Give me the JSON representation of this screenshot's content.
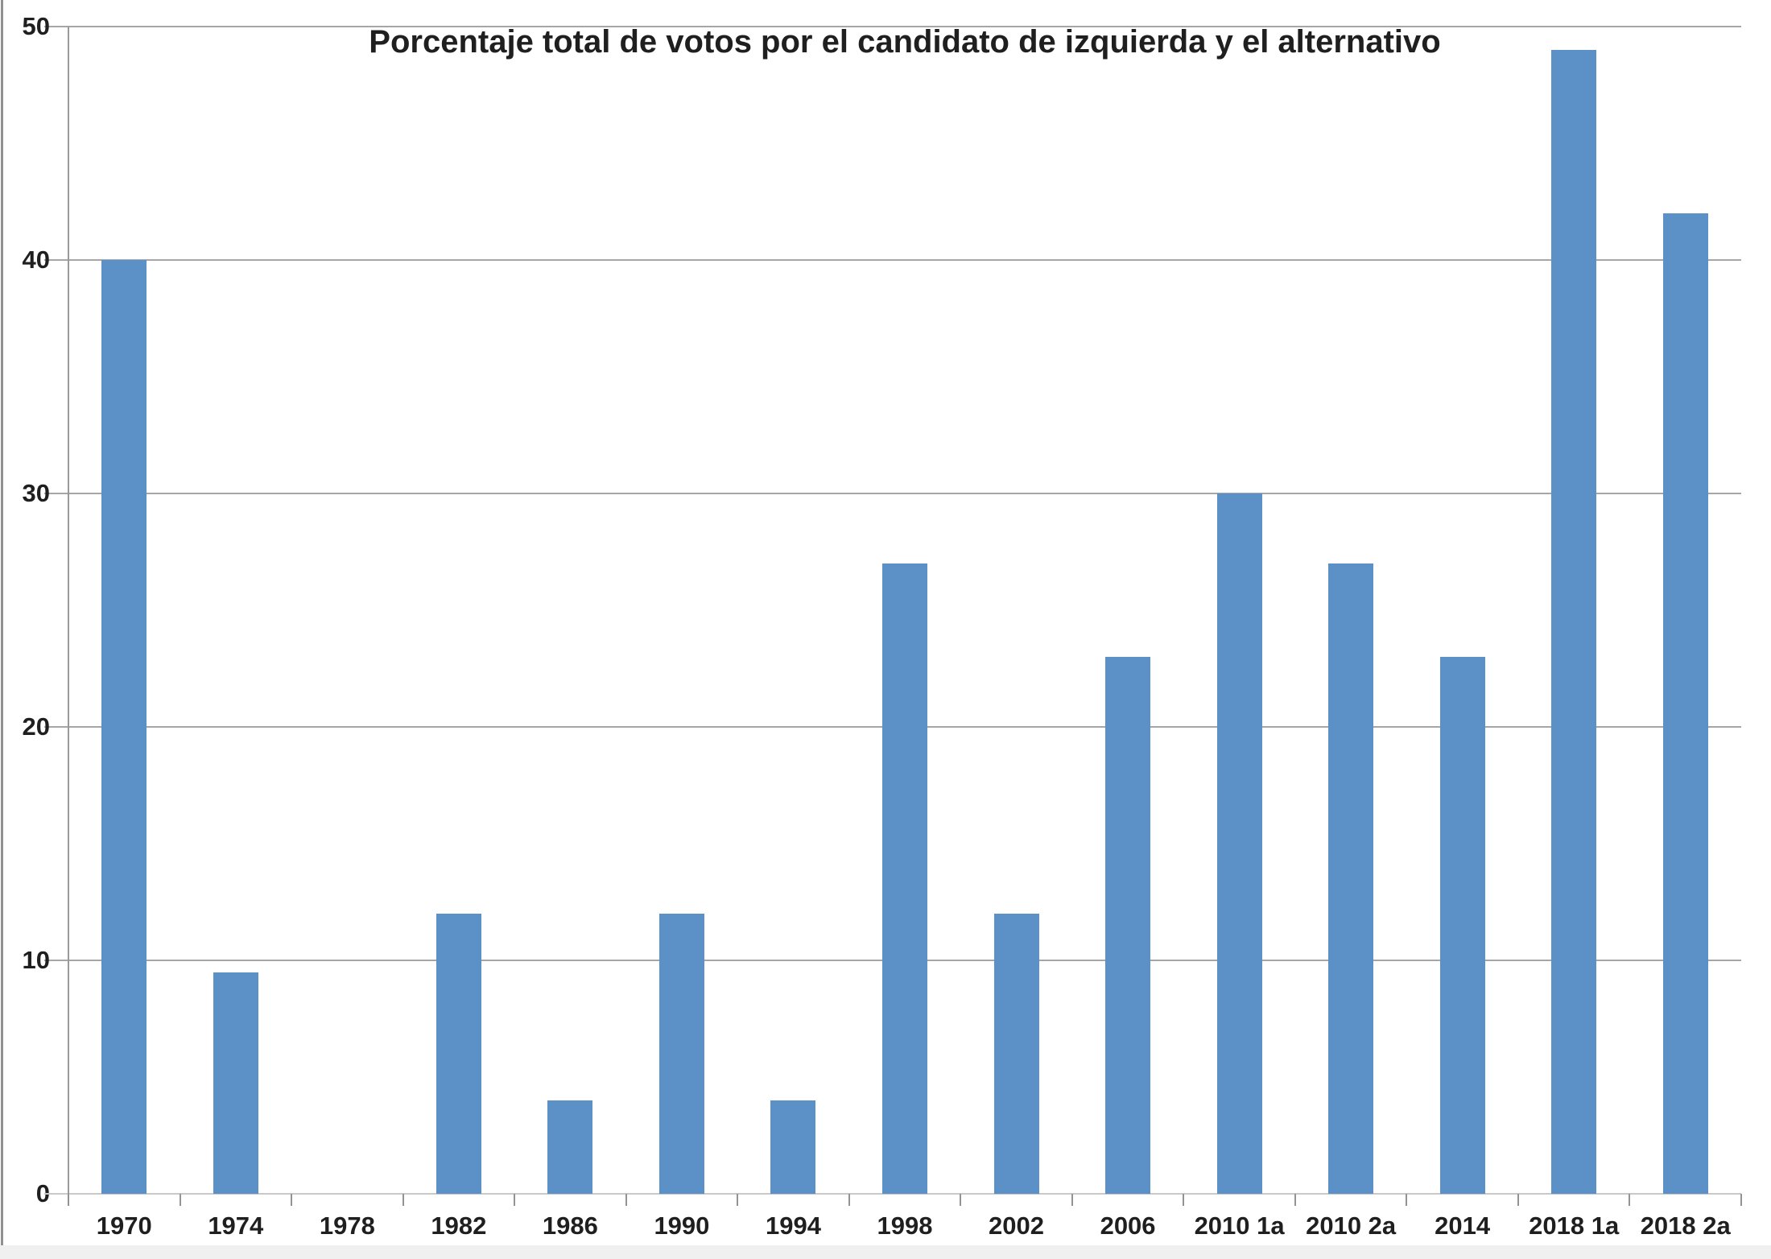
{
  "chart_data": {
    "type": "bar",
    "title": "Porcentaje total de votos por el candidato de izquierda y el alternativo",
    "categories": [
      "1970",
      "1974",
      "1978",
      "1982",
      "1986",
      "1990",
      "1994",
      "1998",
      "2002",
      "2006",
      "2010 1a",
      "2010 2a",
      "2014",
      "2018 1a",
      "2018 2a"
    ],
    "values": [
      40,
      9.5,
      0,
      12,
      4,
      12,
      4,
      27,
      12,
      23,
      30,
      27,
      23,
      49,
      42
    ],
    "xlabel": "",
    "ylabel": "",
    "ylim": [
      0,
      50
    ],
    "yticks": [
      0,
      10,
      20,
      30,
      40,
      50
    ],
    "grid": true,
    "legend": "none",
    "colors": {
      "bar": "#5B91C7",
      "gridline": "#A6A6A6",
      "y_axis": "#9A9A9A",
      "baseline": "#C9C9C9",
      "tick": "#939393",
      "text": "#1F1F1F",
      "frame": "#909090",
      "footer_strip": "#F0F0F0"
    }
  }
}
